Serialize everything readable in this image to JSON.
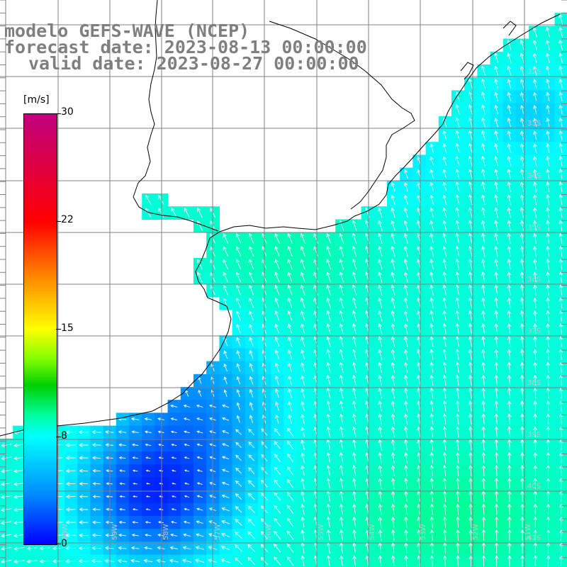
{
  "title": {
    "line1": "modelo GEFS-WAVE (NCEP)",
    "line2": "forecast date: 2023-08-13 00:00:00",
    "line3": "valid date: 2023-08-27 00:00:00"
  },
  "colorbar": {
    "unit": "[m/s]",
    "ticks": [
      "30",
      "22",
      "15",
      "8",
      "0"
    ],
    "min": 0,
    "max": 30
  },
  "lat_labels": [
    "32S",
    "33S",
    "34S",
    "35S",
    "36S",
    "37S",
    "38S",
    "39S",
    "40S",
    "41S"
  ],
  "lon_labels": [
    "60W",
    "59W",
    "58W",
    "57W",
    "56W",
    "55W",
    "54W",
    "53W",
    "52W",
    "51W"
  ],
  "colors": {
    "land": "#ffffff",
    "grid": "#808080",
    "coast": "#000000",
    "vector": "#ffffff",
    "title": "#7f7f7f"
  }
}
